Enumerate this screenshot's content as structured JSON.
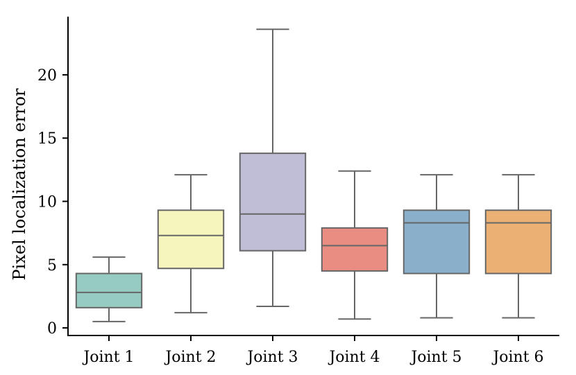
{
  "chart_data": {
    "type": "box",
    "ylabel": "Pixel localization error",
    "xlabel": "",
    "ylim": [
      -0.6,
      24.6
    ],
    "yticks": [
      0,
      5,
      10,
      15,
      20
    ],
    "categories": [
      "Joint 1",
      "Joint 2",
      "Joint 3",
      "Joint 4",
      "Joint 5",
      "Joint 6"
    ],
    "boxes": [
      {
        "name": "Joint 1",
        "whisker_low": 0.5,
        "q1": 1.6,
        "median": 2.8,
        "q3": 4.3,
        "whisker_high": 5.6,
        "color": "#95CBC0"
      },
      {
        "name": "Joint 2",
        "whisker_low": 1.2,
        "q1": 4.7,
        "median": 7.3,
        "q3": 9.3,
        "whisker_high": 12.1,
        "color": "#F6F5BE"
      },
      {
        "name": "Joint 3",
        "whisker_low": 1.7,
        "q1": 6.1,
        "median": 9.0,
        "q3": 13.8,
        "whisker_high": 23.6,
        "color": "#C0BDD6"
      },
      {
        "name": "Joint 4",
        "whisker_low": 0.7,
        "q1": 4.5,
        "median": 6.5,
        "q3": 7.9,
        "whisker_high": 12.4,
        "color": "#E98C82"
      },
      {
        "name": "Joint 5",
        "whisker_low": 0.8,
        "q1": 4.3,
        "median": 8.3,
        "q3": 9.3,
        "whisker_high": 12.1,
        "color": "#89AFCA"
      },
      {
        "name": "Joint 6",
        "whisker_low": 0.8,
        "q1": 4.3,
        "median": 8.3,
        "q3": 9.3,
        "whisker_high": 12.1,
        "color": "#EBB174"
      }
    ],
    "line_color": "#666666",
    "grid": false,
    "legend": "none"
  }
}
